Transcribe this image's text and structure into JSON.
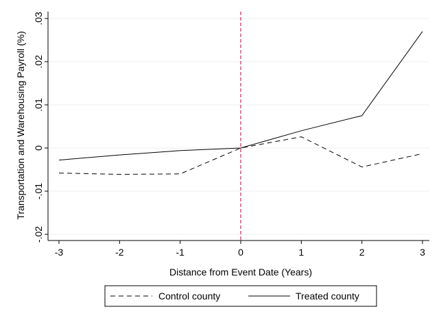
{
  "chart_data": {
    "type": "line",
    "title": "",
    "xlabel": "Distance from Event Date (Years)",
    "ylabel": "Transportation and Warehousing Payroll (%)",
    "x": [
      -3,
      -2,
      -1,
      0,
      1,
      2,
      3
    ],
    "xlim": [
      -3,
      3
    ],
    "ylim": [
      -0.02,
      0.03
    ],
    "x_ticks": [
      -3,
      -2,
      -1,
      0,
      1,
      2,
      3
    ],
    "x_tick_labels": [
      "-3",
      "-2",
      "-1",
      "0",
      "1",
      "2",
      "3"
    ],
    "y_ticks": [
      -0.02,
      -0.01,
      0,
      0.01,
      0.02,
      0.03
    ],
    "y_tick_labels": [
      "-.02",
      "-.01",
      "0",
      ".01",
      ".02",
      ".03"
    ],
    "grid": true,
    "event_line": {
      "x": 0,
      "color": "#b0003a",
      "style": "dashed"
    },
    "series": [
      {
        "name": "Control county",
        "style": "dashed",
        "color": "#000000",
        "values": [
          -0.0058,
          -0.0061,
          -0.006,
          0.0,
          0.0026,
          -0.0044,
          -0.0013
        ]
      },
      {
        "name": "Treated county",
        "style": "solid",
        "color": "#000000",
        "values": [
          -0.0028,
          -0.0016,
          -0.0006,
          0.0,
          0.004,
          0.0075,
          0.027
        ]
      }
    ],
    "legend": {
      "placement": "bottom-center"
    }
  }
}
